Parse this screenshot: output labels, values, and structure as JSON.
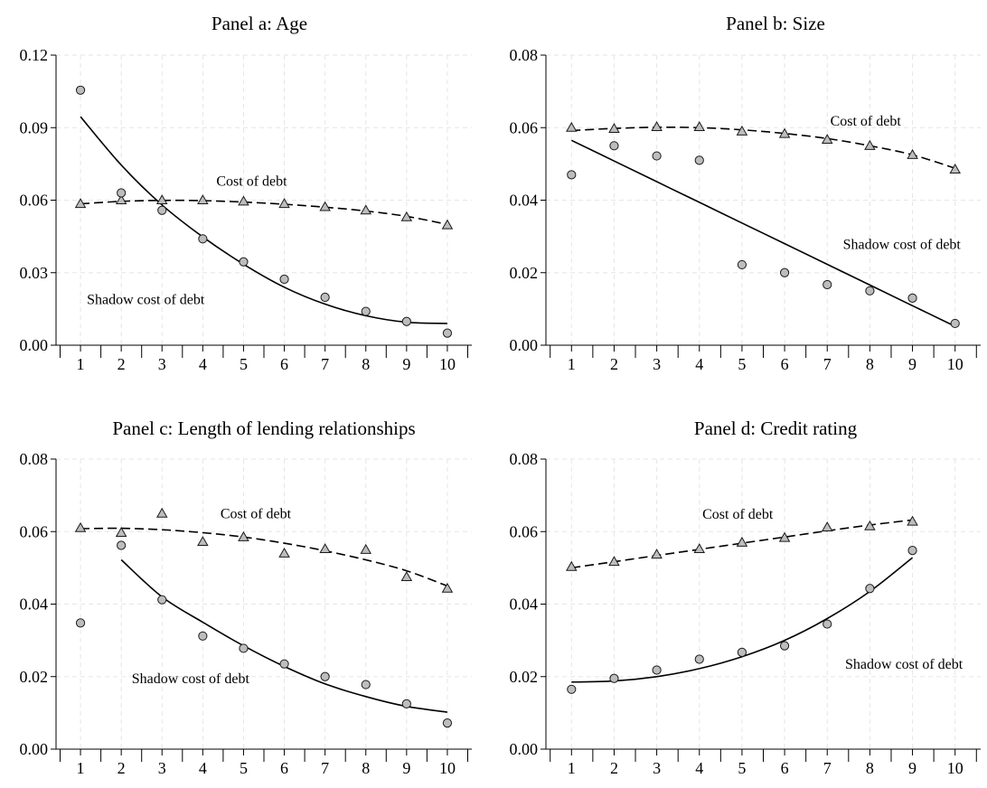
{
  "chart_data": [
    {
      "type": "scatter",
      "title": "Panel a: Age",
      "x_ticks": [
        1,
        2,
        3,
        4,
        5,
        6,
        7,
        8,
        9,
        10
      ],
      "y_ticks": [
        0,
        0.03,
        0.06,
        0.09,
        0.12
      ],
      "y_tick_labels": [
        "0.00",
        "0.03",
        "0.06",
        "0.09",
        "0.12"
      ],
      "xlim": [
        0.4,
        10.6
      ],
      "ylim": [
        0,
        0.12
      ],
      "grid": true,
      "series": [
        {
          "name": "Cost of debt",
          "marker": "triangle",
          "fit": "dashed",
          "x": [
            1,
            2,
            3,
            4,
            5,
            6,
            7,
            8,
            9,
            10
          ],
          "values": [
            0.0585,
            0.06,
            0.06,
            0.06,
            0.0595,
            0.0585,
            0.0572,
            0.0558,
            0.053,
            0.0497
          ],
          "fit_values": [
            0.0585,
            0.0595,
            0.0599,
            0.0598,
            0.0592,
            0.0583,
            0.0571,
            0.0555,
            0.0533,
            0.05
          ]
        },
        {
          "name": "Shadow cost of debt",
          "marker": "circle",
          "fit": "solid",
          "x": [
            1,
            2,
            3,
            4,
            5,
            6,
            7,
            8,
            9,
            10
          ],
          "values": [
            0.1055,
            0.063,
            0.0558,
            0.044,
            0.0345,
            0.0273,
            0.0198,
            0.014,
            0.0098,
            0.005
          ],
          "fit_values": [
            0.0945,
            0.0745,
            0.058,
            0.0448,
            0.0335,
            0.024,
            0.017,
            0.0122,
            0.0095,
            0.009
          ]
        }
      ],
      "annotations": [
        {
          "text": "Cost of debt",
          "x": 5.2,
          "y": 0.066
        },
        {
          "text": "Shadow cost of debt",
          "x": 2.6,
          "y": 0.017
        }
      ]
    },
    {
      "type": "scatter",
      "title": "Panel b: Size",
      "x_ticks": [
        1,
        2,
        3,
        4,
        5,
        6,
        7,
        8,
        9,
        10
      ],
      "y_ticks": [
        0,
        0.02,
        0.04,
        0.06,
        0.08
      ],
      "y_tick_labels": [
        "0.00",
        "0.02",
        "0.04",
        "0.06",
        "0.08"
      ],
      "xlim": [
        0.4,
        10.6
      ],
      "ylim": [
        0,
        0.08
      ],
      "grid": true,
      "series": [
        {
          "name": "Cost of debt",
          "marker": "triangle",
          "fit": "dashed",
          "x": [
            1,
            2,
            3,
            4,
            5,
            6,
            7,
            8,
            9,
            10
          ],
          "values": [
            0.06,
            0.0597,
            0.0602,
            0.0602,
            0.059,
            0.0583,
            0.0567,
            0.055,
            0.0525,
            0.0485
          ],
          "fit_values": [
            0.0592,
            0.0598,
            0.0601,
            0.06,
            0.0594,
            0.0584,
            0.057,
            0.055,
            0.0525,
            0.0488
          ]
        },
        {
          "name": "Shadow cost of debt",
          "marker": "circle",
          "fit": "solid",
          "x": [
            1,
            2,
            3,
            4,
            5,
            6,
            7,
            8,
            9,
            10
          ],
          "values": [
            0.047,
            0.055,
            0.0522,
            0.051,
            0.0222,
            0.02,
            0.0167,
            0.015,
            0.013,
            0.006
          ],
          "fit_values": [
            0.0565,
            0.0508,
            0.0451,
            0.0394,
            0.0337,
            0.028,
            0.0223,
            0.0166,
            0.0109,
            0.0052
          ]
        }
      ],
      "annotations": [
        {
          "text": "Cost of debt",
          "x": 7.9,
          "y": 0.0605
        },
        {
          "text": "Shadow cost of debt",
          "x": 8.75,
          "y": 0.0265
        }
      ]
    },
    {
      "type": "scatter",
      "title": "Panel c: Length of lending relationships",
      "x_ticks": [
        1,
        2,
        3,
        4,
        5,
        6,
        7,
        8,
        9,
        10
      ],
      "y_ticks": [
        0,
        0.02,
        0.04,
        0.06,
        0.08
      ],
      "y_tick_labels": [
        "0.00",
        "0.02",
        "0.04",
        "0.06",
        "0.08"
      ],
      "xlim": [
        0.4,
        10.6
      ],
      "ylim": [
        0,
        0.08
      ],
      "grid": true,
      "series": [
        {
          "name": "Cost of debt",
          "marker": "triangle",
          "fit": "dashed",
          "x": [
            1,
            2,
            3,
            4,
            5,
            6,
            7,
            8,
            9,
            10
          ],
          "values": [
            0.061,
            0.0597,
            0.065,
            0.0572,
            0.0585,
            0.054,
            0.0552,
            0.055,
            0.0475,
            0.0443
          ],
          "fit_values": [
            0.0608,
            0.0609,
            0.0605,
            0.0597,
            0.0585,
            0.0568,
            0.0547,
            0.0522,
            0.0492,
            0.045
          ]
        },
        {
          "name": "Shadow cost of debt",
          "marker": "circle",
          "fit": "solid",
          "x": [
            1,
            2,
            3,
            4,
            5,
            6,
            7,
            8,
            9,
            10
          ],
          "values": [
            0.0348,
            0.0562,
            0.0412,
            0.0312,
            0.0278,
            0.0235,
            0.02,
            0.0178,
            0.0125,
            0.0072
          ],
          "fit_values": [
            null,
            0.0522,
            0.042,
            0.035,
            0.0285,
            0.0228,
            0.018,
            0.0145,
            0.0118,
            0.0102
          ]
        }
      ],
      "annotations": [
        {
          "text": "Cost of debt",
          "x": 5.3,
          "y": 0.0637
        },
        {
          "text": "Shadow cost of debt",
          "x": 3.7,
          "y": 0.0182
        }
      ]
    },
    {
      "type": "scatter",
      "title": "Panel d: Credit rating",
      "x_ticks": [
        1,
        2,
        3,
        4,
        5,
        6,
        7,
        8,
        9,
        10
      ],
      "y_ticks": [
        0,
        0.02,
        0.04,
        0.06,
        0.08
      ],
      "y_tick_labels": [
        "0.00",
        "0.02",
        "0.04",
        "0.06",
        "0.08"
      ],
      "xlim": [
        0.4,
        10.6
      ],
      "ylim": [
        0,
        0.08
      ],
      "grid": true,
      "series": [
        {
          "name": "Cost of debt",
          "marker": "triangle",
          "fit": "dashed",
          "x": [
            1,
            2,
            3,
            4,
            5,
            6,
            7,
            8,
            9
          ],
          "values": [
            0.0503,
            0.0517,
            0.0537,
            0.0552,
            0.057,
            0.0583,
            0.0612,
            0.0615,
            0.0628
          ],
          "fit_values": [
            0.05,
            0.0517,
            0.0534,
            0.0551,
            0.0568,
            0.0585,
            0.0602,
            0.0618,
            0.0632
          ]
        },
        {
          "name": "Shadow cost of debt",
          "marker": "circle",
          "fit": "solid",
          "x": [
            1,
            2,
            3,
            4,
            5,
            6,
            7,
            8,
            9
          ],
          "values": [
            0.0165,
            0.0195,
            0.0218,
            0.0248,
            0.0267,
            0.0285,
            0.0345,
            0.0443,
            0.0548
          ],
          "fit_values": [
            0.0185,
            0.0188,
            0.02,
            0.0222,
            0.0255,
            0.03,
            0.036,
            0.0435,
            0.0528
          ]
        }
      ],
      "annotations": [
        {
          "text": "Cost of debt",
          "x": 4.9,
          "y": 0.0635
        },
        {
          "text": "Shadow cost of debt",
          "x": 8.8,
          "y": 0.0222
        }
      ]
    }
  ]
}
